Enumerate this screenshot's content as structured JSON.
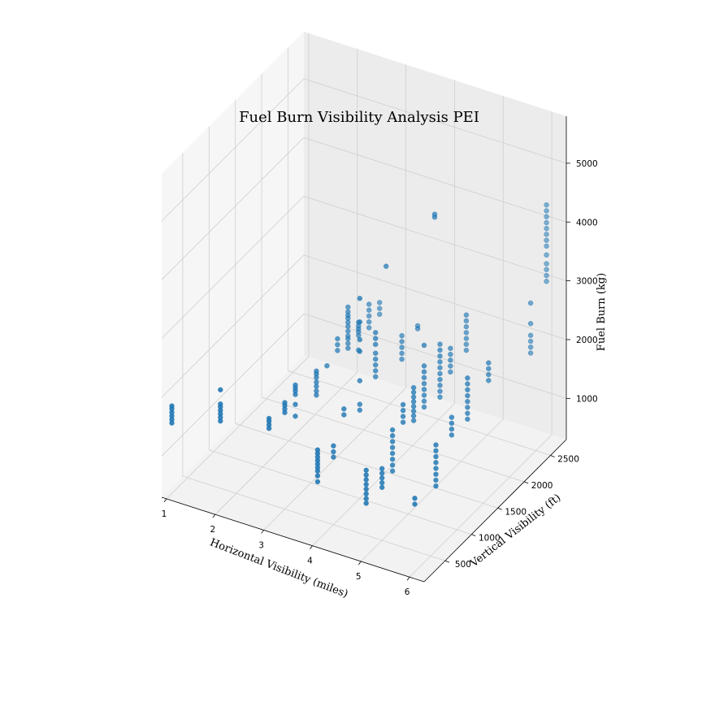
{
  "chart_data": {
    "type": "scatter",
    "projection": "3d",
    "title": "Fuel Burn Visibility Analysis PEI",
    "xlabel": "Horizontal Visibility (miles)",
    "ylabel": "Vertical Visibility (ft)",
    "zlabel": "Fuel Burn (kg)",
    "xlim": [
      0.9,
      6.3
    ],
    "ylim": [
      100,
      2800
    ],
    "zlim": [
      300,
      5800
    ],
    "xticks": [
      1,
      2,
      3,
      4,
      5,
      6
    ],
    "yticks": [
      500,
      1000,
      1500,
      2000,
      2500
    ],
    "zticks": [
      1000,
      2000,
      3000,
      4000,
      5000
    ],
    "grid": true,
    "marker_color": "#1f77b4",
    "series": [
      {
        "points": [
          [
            1,
            200,
            1500
          ],
          [
            1,
            200,
            1560
          ],
          [
            1,
            200,
            1620
          ],
          [
            1,
            200,
            1680
          ],
          [
            1,
            200,
            1740
          ],
          [
            1,
            200,
            1790
          ],
          [
            2,
            200,
            1800
          ],
          [
            2,
            200,
            1860
          ],
          [
            2,
            200,
            1920
          ],
          [
            2,
            200,
            1980
          ],
          [
            2,
            200,
            2040
          ],
          [
            2,
            200,
            2090
          ],
          [
            2,
            200,
            2330
          ],
          [
            3,
            200,
            1940
          ],
          [
            3,
            200,
            2000
          ],
          [
            3,
            200,
            2060
          ],
          [
            3,
            200,
            2110
          ],
          [
            3,
            500,
            1940
          ],
          [
            3,
            500,
            2000
          ],
          [
            3,
            500,
            2060
          ],
          [
            3,
            500,
            2110
          ],
          [
            3,
            700,
            1700
          ],
          [
            3,
            700,
            1900
          ],
          [
            3,
            700,
            2070
          ],
          [
            3,
            700,
            2130
          ],
          [
            3,
            700,
            2180
          ],
          [
            3,
            700,
            2230
          ],
          [
            3,
            1100,
            1700
          ],
          [
            3,
            1100,
            1770
          ],
          [
            3,
            1100,
            1850
          ],
          [
            3,
            1100,
            1920
          ],
          [
            3,
            1100,
            2000
          ],
          [
            3,
            1100,
            2060
          ],
          [
            3,
            1100,
            2110
          ],
          [
            3,
            1300,
            2020
          ],
          [
            3,
            1500,
            2100
          ],
          [
            3,
            1500,
            2200
          ],
          [
            3,
            1500,
            2300
          ],
          [
            3,
            1700,
            1960
          ],
          [
            3,
            1700,
            2040
          ],
          [
            3,
            1700,
            2120
          ],
          [
            3,
            1700,
            2170
          ],
          [
            3,
            1700,
            2250
          ],
          [
            3,
            1700,
            2330
          ],
          [
            3,
            1700,
            2400
          ],
          [
            3,
            1700,
            2470
          ],
          [
            3,
            1700,
            2520
          ],
          [
            3,
            1700,
            2580
          ],
          [
            3,
            1700,
            2660
          ],
          [
            3,
            1900,
            1750
          ],
          [
            3,
            1900,
            2000
          ],
          [
            3,
            1900,
            2060
          ],
          [
            3,
            1900,
            2110
          ],
          [
            3,
            1900,
            2160
          ],
          [
            3,
            1900,
            2220
          ],
          [
            3,
            2100,
            1950
          ],
          [
            3,
            2100,
            2050
          ],
          [
            3,
            2100,
            2150
          ],
          [
            3,
            2100,
            2250
          ],
          [
            3,
            2100,
            2350
          ],
          [
            3,
            2300,
            2000
          ],
          [
            3,
            2300,
            2100
          ],
          [
            3,
            2300,
            2200
          ],
          [
            4,
            200,
            1300
          ],
          [
            4,
            200,
            1400
          ],
          [
            4,
            200,
            1480
          ],
          [
            4,
            200,
            1540
          ],
          [
            4,
            200,
            1600
          ],
          [
            4,
            200,
            1660
          ],
          [
            4,
            200,
            1720
          ],
          [
            4,
            200,
            1780
          ],
          [
            4,
            200,
            1840
          ],
          [
            4,
            500,
            1450
          ],
          [
            4,
            500,
            1540
          ],
          [
            4,
            500,
            1640
          ],
          [
            4,
            700,
            1990
          ],
          [
            4,
            700,
            2090
          ],
          [
            4,
            1000,
            1800
          ],
          [
            4,
            1000,
            1900
          ],
          [
            4,
            1000,
            2300
          ],
          [
            4,
            1000,
            2800
          ],
          [
            4,
            1000,
            3000
          ],
          [
            4,
            1000,
            3300
          ],
          [
            4,
            1000,
            3700
          ],
          [
            4,
            1300,
            2100
          ],
          [
            4,
            1300,
            2200
          ],
          [
            4,
            1300,
            2300
          ],
          [
            4,
            1300,
            2400
          ],
          [
            4,
            1300,
            2500
          ],
          [
            4,
            1300,
            2650
          ],
          [
            4,
            1300,
            2750
          ],
          [
            4,
            1300,
            2850
          ],
          [
            4,
            1500,
            3800
          ],
          [
            4,
            1800,
            1950
          ],
          [
            4,
            1800,
            2050
          ],
          [
            4,
            1800,
            2150
          ],
          [
            4,
            1800,
            2250
          ],
          [
            4,
            1800,
            2350
          ],
          [
            4,
            2100,
            2200
          ],
          [
            4,
            2100,
            2250
          ],
          [
            5,
            200,
            1200
          ],
          [
            5,
            200,
            1280
          ],
          [
            5,
            200,
            1360
          ],
          [
            5,
            200,
            1440
          ],
          [
            5,
            200,
            1520
          ],
          [
            5,
            200,
            1600
          ],
          [
            5,
            200,
            1680
          ],
          [
            5,
            200,
            1760
          ],
          [
            5,
            500,
            1200
          ],
          [
            5,
            500,
            1280
          ],
          [
            5,
            500,
            1360
          ],
          [
            5,
            500,
            1440
          ],
          [
            5,
            500,
            1520
          ],
          [
            5,
            700,
            1300
          ],
          [
            5,
            700,
            1400
          ],
          [
            5,
            700,
            1500
          ],
          [
            5,
            700,
            1600
          ],
          [
            5,
            700,
            1700
          ],
          [
            5,
            700,
            1800
          ],
          [
            5,
            700,
            1900
          ],
          [
            5,
            700,
            2000
          ],
          [
            5,
            900,
            1950
          ],
          [
            5,
            900,
            2050
          ],
          [
            5,
            900,
            2150
          ],
          [
            5,
            900,
            2250
          ],
          [
            5,
            1100,
            1800
          ],
          [
            5,
            1100,
            1880
          ],
          [
            5,
            1100,
            1960
          ],
          [
            5,
            1100,
            2040
          ],
          [
            5,
            1100,
            2120
          ],
          [
            5,
            1100,
            2200
          ],
          [
            5,
            1100,
            2280
          ],
          [
            5,
            1100,
            2360
          ],
          [
            5,
            1300,
            1850
          ],
          [
            5,
            1300,
            1950
          ],
          [
            5,
            1300,
            2050
          ],
          [
            5,
            1300,
            2150
          ],
          [
            5,
            1300,
            2250
          ],
          [
            5,
            1300,
            2350
          ],
          [
            5,
            1300,
            2450
          ],
          [
            5,
            1300,
            2550
          ],
          [
            5,
            1300,
            2900
          ],
          [
            5,
            1500,
            4900
          ],
          [
            5,
            1500,
            4950
          ],
          [
            5,
            1600,
            1750
          ],
          [
            5,
            1600,
            1850
          ],
          [
            5,
            1600,
            1950
          ],
          [
            5,
            1600,
            2050
          ],
          [
            5,
            1600,
            2150
          ],
          [
            5,
            1600,
            2250
          ],
          [
            5,
            1600,
            2350
          ],
          [
            5,
            1600,
            2450
          ],
          [
            5,
            1600,
            2550
          ],
          [
            5,
            1600,
            2650
          ],
          [
            5,
            1800,
            2000
          ],
          [
            5,
            1800,
            2100
          ],
          [
            5,
            1800,
            2200
          ],
          [
            5,
            1800,
            2300
          ],
          [
            5,
            1800,
            2400
          ],
          [
            5,
            2100,
            2100
          ],
          [
            5,
            2100,
            2200
          ],
          [
            5,
            2100,
            2300
          ],
          [
            5,
            2100,
            2400
          ],
          [
            5,
            2100,
            2500
          ],
          [
            5,
            2100,
            2600
          ],
          [
            5,
            2100,
            2700
          ],
          [
            6,
            200,
            1450
          ],
          [
            6,
            200,
            1550
          ],
          [
            6,
            600,
            1400
          ],
          [
            6,
            600,
            1500
          ],
          [
            6,
            600,
            1600
          ],
          [
            6,
            600,
            1700
          ],
          [
            6,
            600,
            1800
          ],
          [
            6,
            600,
            1900
          ],
          [
            6,
            600,
            2000
          ],
          [
            6,
            600,
            2100
          ],
          [
            6,
            900,
            2000
          ],
          [
            6,
            900,
            2100
          ],
          [
            6,
            900,
            2200
          ],
          [
            6,
            900,
            2300
          ],
          [
            6,
            1200,
            2000
          ],
          [
            6,
            1200,
            2100
          ],
          [
            6,
            1200,
            2200
          ],
          [
            6,
            1200,
            2300
          ],
          [
            6,
            1200,
            2400
          ],
          [
            6,
            1200,
            2500
          ],
          [
            6,
            1200,
            2600
          ],
          [
            6,
            1200,
            2700
          ],
          [
            6,
            1600,
            2300
          ],
          [
            6,
            1600,
            2400
          ],
          [
            6,
            1600,
            2500
          ],
          [
            6,
            1600,
            2600
          ],
          [
            6,
            2400,
            2050
          ],
          [
            6,
            2400,
            2150
          ],
          [
            6,
            2400,
            2250
          ],
          [
            6,
            2400,
            2350
          ],
          [
            6,
            2400,
            2550
          ],
          [
            6,
            2400,
            2900
          ],
          [
            6,
            2700,
            3000
          ],
          [
            6,
            2700,
            3100
          ],
          [
            6,
            2700,
            3200
          ],
          [
            6,
            2700,
            3300
          ],
          [
            6,
            2700,
            3450
          ],
          [
            6,
            2700,
            3600
          ],
          [
            6,
            2700,
            3700
          ],
          [
            6,
            2700,
            3800
          ],
          [
            6,
            2700,
            3900
          ],
          [
            6,
            2700,
            4000
          ],
          [
            6,
            2700,
            4100
          ],
          [
            6,
            2700,
            4200
          ],
          [
            6,
            2700,
            4300
          ]
        ]
      }
    ]
  }
}
